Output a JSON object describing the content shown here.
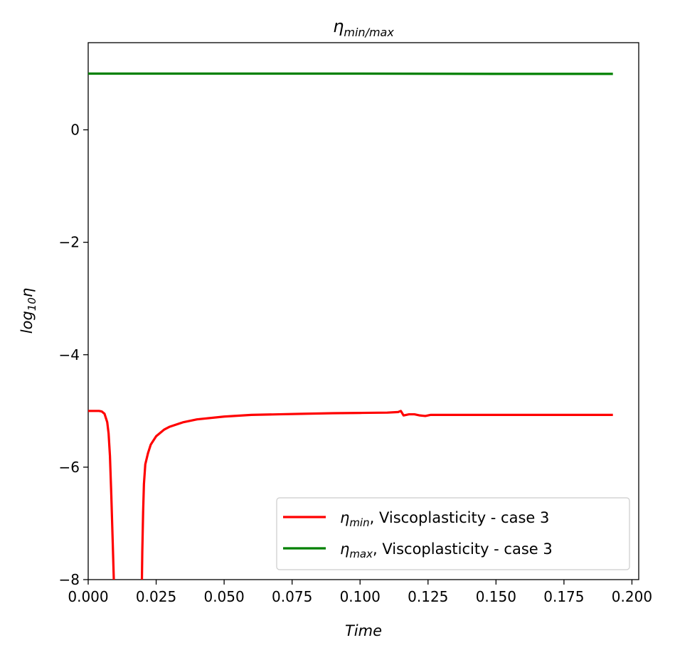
{
  "chart_data": {
    "type": "line",
    "title_main": "η",
    "title_sub": "min/max",
    "xlabel": "Time",
    "ylabel_main": "log",
    "ylabel_sub": "10",
    "ylabel_tail": "η",
    "xlim": [
      0.0,
      0.2025
    ],
    "ylim": [
      -8,
      1.55
    ],
    "xticks": [
      0.0,
      0.025,
      0.05,
      0.075,
      0.1,
      0.125,
      0.15,
      0.175,
      0.2
    ],
    "xtick_labels": [
      "0.000",
      "0.025",
      "0.050",
      "0.075",
      "0.100",
      "0.125",
      "0.150",
      "0.175",
      "0.200"
    ],
    "yticks": [
      -8,
      -6,
      -4,
      -2,
      0
    ],
    "ytick_labels": [
      "−8",
      "−6",
      "−4",
      "−2",
      "0"
    ],
    "grid": false,
    "legend_position": "bottom-right",
    "series": [
      {
        "name_symbol": "η",
        "name_sub": "min",
        "name_rest": ", Viscoplasticity - case 3",
        "color": "#ff0000",
        "x": [
          0.0,
          0.004,
          0.005,
          0.006,
          0.007,
          0.0075,
          0.008,
          0.0085,
          0.009,
          0.0093,
          0.0096,
          0.0097,
          0.0195,
          0.0197,
          0.0199,
          0.0202,
          0.0205,
          0.021,
          0.022,
          0.023,
          0.025,
          0.028,
          0.03,
          0.035,
          0.04,
          0.05,
          0.06,
          0.07,
          0.08,
          0.09,
          0.1,
          0.11,
          0.114,
          0.115,
          0.116,
          0.118,
          0.12,
          0.122,
          0.124,
          0.126,
          0.13,
          0.15,
          0.17,
          0.193
        ],
        "y": [
          -5.0,
          -5.0,
          -5.01,
          -5.05,
          -5.2,
          -5.4,
          -5.8,
          -6.5,
          -7.3,
          -7.8,
          -8.3,
          -8.6,
          -8.6,
          -8.2,
          -7.5,
          -6.8,
          -6.3,
          -5.95,
          -5.75,
          -5.6,
          -5.45,
          -5.33,
          -5.28,
          -5.2,
          -5.15,
          -5.1,
          -5.07,
          -5.06,
          -5.05,
          -5.04,
          -5.035,
          -5.03,
          -5.02,
          -5.0,
          -5.08,
          -5.06,
          -5.06,
          -5.08,
          -5.09,
          -5.07,
          -5.07,
          -5.07,
          -5.07,
          -5.07
        ]
      },
      {
        "name_symbol": "η",
        "name_sub": "max",
        "name_rest": ", Viscoplasticity - case 3",
        "color": "#008000",
        "x": [
          0.0,
          0.05,
          0.1,
          0.15,
          0.193
        ],
        "y": [
          1.0,
          1.0,
          1.0,
          0.995,
          0.995
        ]
      }
    ]
  }
}
